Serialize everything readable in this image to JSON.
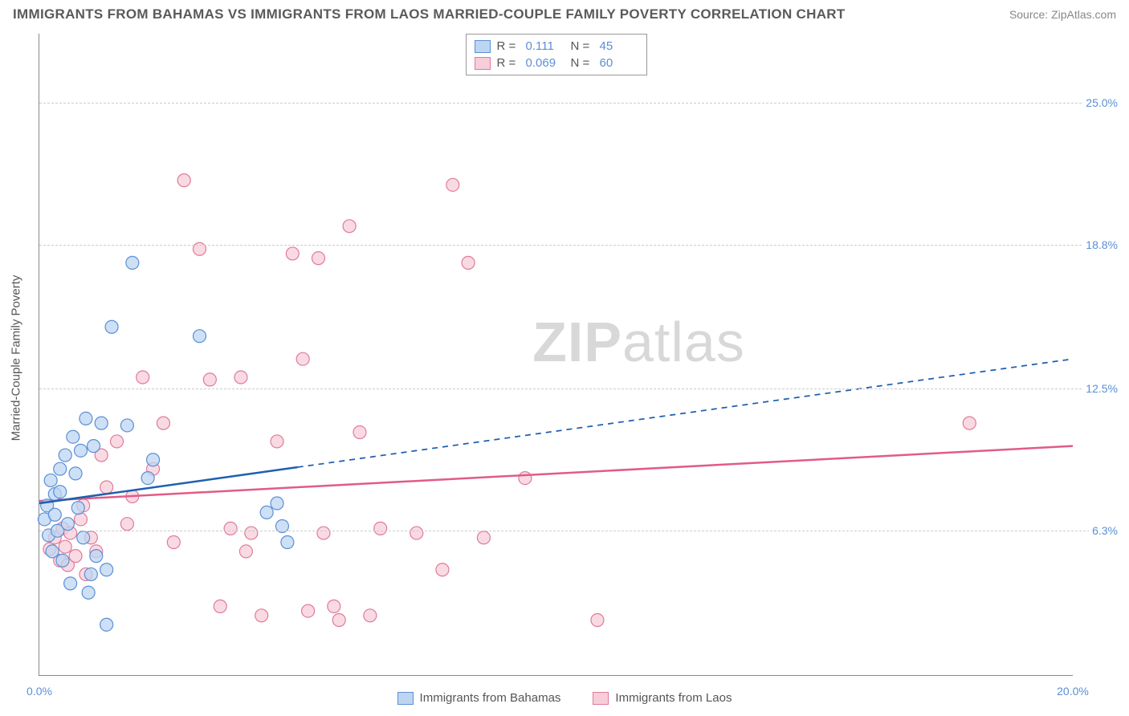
{
  "header": {
    "title": "IMMIGRANTS FROM BAHAMAS VS IMMIGRANTS FROM LAOS MARRIED-COUPLE FAMILY POVERTY CORRELATION CHART",
    "source": "Source: ZipAtlas.com"
  },
  "watermark": {
    "prefix": "ZIP",
    "suffix": "atlas"
  },
  "chart": {
    "type": "scatter",
    "ylabel": "Married-Couple Family Poverty",
    "xlim": [
      0,
      20
    ],
    "ylim": [
      0,
      28
    ],
    "xticks": [
      {
        "v": 0,
        "label": "0.0%"
      },
      {
        "v": 20,
        "label": "20.0%"
      }
    ],
    "yticks": [
      {
        "v": 6.3,
        "label": "6.3%"
      },
      {
        "v": 12.5,
        "label": "12.5%"
      },
      {
        "v": 18.8,
        "label": "18.8%"
      },
      {
        "v": 25.0,
        "label": "25.0%"
      }
    ],
    "legend_rn": [
      {
        "swatch_fill": "#bcd6f2",
        "swatch_stroke": "#5b8fd6",
        "r_label": "R =",
        "r_val": "0.111",
        "n_label": "N =",
        "n_val": "45"
      },
      {
        "swatch_fill": "#f7cdd9",
        "swatch_stroke": "#e07a9a",
        "r_label": "R =",
        "r_val": "0.069",
        "n_label": "N =",
        "n_val": "60"
      }
    ],
    "bottom_legend": [
      {
        "swatch_fill": "#bcd6f2",
        "swatch_stroke": "#5b8fd6",
        "label": "Immigrants from Bahamas"
      },
      {
        "swatch_fill": "#f7cdd9",
        "swatch_stroke": "#e07a9a",
        "label": "Immigrants from Laos"
      }
    ],
    "series": {
      "bahamas": {
        "marker_fill": "#bcd6f2",
        "marker_stroke": "#5b8fd6",
        "marker_opacity": 0.75,
        "marker_r": 8,
        "trend": {
          "color": "#1f5fb0",
          "width": 2.5,
          "solid_to_x": 5.0,
          "y0": 7.5,
          "y20": 13.8
        },
        "points": [
          [
            0.1,
            6.8
          ],
          [
            0.15,
            7.4
          ],
          [
            0.18,
            6.1
          ],
          [
            0.22,
            8.5
          ],
          [
            0.25,
            5.4
          ],
          [
            0.3,
            7.0
          ],
          [
            0.3,
            7.9
          ],
          [
            0.35,
            6.3
          ],
          [
            0.4,
            9.0
          ],
          [
            0.4,
            8.0
          ],
          [
            0.45,
            5.0
          ],
          [
            0.5,
            9.6
          ],
          [
            0.55,
            6.6
          ],
          [
            0.6,
            4.0
          ],
          [
            0.65,
            10.4
          ],
          [
            0.7,
            8.8
          ],
          [
            0.75,
            7.3
          ],
          [
            0.8,
            9.8
          ],
          [
            0.85,
            6.0
          ],
          [
            0.9,
            11.2
          ],
          [
            0.95,
            3.6
          ],
          [
            1.0,
            4.4
          ],
          [
            1.05,
            10.0
          ],
          [
            1.1,
            5.2
          ],
          [
            1.2,
            11.0
          ],
          [
            1.3,
            2.2
          ],
          [
            1.3,
            4.6
          ],
          [
            1.4,
            15.2
          ],
          [
            1.7,
            10.9
          ],
          [
            1.8,
            18.0
          ],
          [
            2.1,
            8.6
          ],
          [
            2.2,
            9.4
          ],
          [
            3.1,
            14.8
          ],
          [
            4.4,
            7.1
          ],
          [
            4.7,
            6.5
          ],
          [
            4.8,
            5.8
          ],
          [
            4.6,
            7.5
          ]
        ]
      },
      "laos": {
        "marker_fill": "#f7cdd9",
        "marker_stroke": "#e07a9a",
        "marker_opacity": 0.75,
        "marker_r": 8,
        "trend": {
          "color": "#e05c86",
          "width": 2.5,
          "solid_to_x": 20.0,
          "y0": 7.6,
          "y20": 10.0
        },
        "points": [
          [
            0.2,
            5.5
          ],
          [
            0.3,
            6.0
          ],
          [
            0.4,
            5.0
          ],
          [
            0.45,
            6.4
          ],
          [
            0.5,
            5.6
          ],
          [
            0.55,
            4.8
          ],
          [
            0.6,
            6.2
          ],
          [
            0.7,
            5.2
          ],
          [
            0.8,
            6.8
          ],
          [
            0.85,
            7.4
          ],
          [
            0.9,
            4.4
          ],
          [
            1.0,
            6.0
          ],
          [
            1.1,
            5.4
          ],
          [
            1.2,
            9.6
          ],
          [
            1.3,
            8.2
          ],
          [
            1.5,
            10.2
          ],
          [
            1.7,
            6.6
          ],
          [
            1.8,
            7.8
          ],
          [
            2.0,
            13.0
          ],
          [
            2.2,
            9.0
          ],
          [
            2.4,
            11.0
          ],
          [
            2.6,
            5.8
          ],
          [
            2.8,
            21.6
          ],
          [
            3.1,
            18.6
          ],
          [
            3.3,
            12.9
          ],
          [
            3.5,
            3.0
          ],
          [
            3.7,
            6.4
          ],
          [
            3.9,
            13.0
          ],
          [
            4.0,
            5.4
          ],
          [
            4.1,
            6.2
          ],
          [
            4.3,
            2.6
          ],
          [
            4.6,
            10.2
          ],
          [
            4.9,
            18.4
          ],
          [
            5.1,
            13.8
          ],
          [
            5.2,
            2.8
          ],
          [
            5.4,
            18.2
          ],
          [
            5.5,
            6.2
          ],
          [
            5.7,
            3.0
          ],
          [
            5.8,
            2.4
          ],
          [
            6.0,
            19.6
          ],
          [
            6.2,
            10.6
          ],
          [
            6.4,
            2.6
          ],
          [
            6.6,
            6.4
          ],
          [
            7.3,
            6.2
          ],
          [
            7.8,
            4.6
          ],
          [
            8.0,
            21.4
          ],
          [
            8.3,
            18.0
          ],
          [
            8.6,
            6.0
          ],
          [
            9.4,
            8.6
          ],
          [
            10.8,
            2.4
          ],
          [
            18.0,
            11.0
          ]
        ]
      }
    },
    "background_color": "#ffffff",
    "grid_color": "#cccccc",
    "axis_color": "#888888"
  }
}
